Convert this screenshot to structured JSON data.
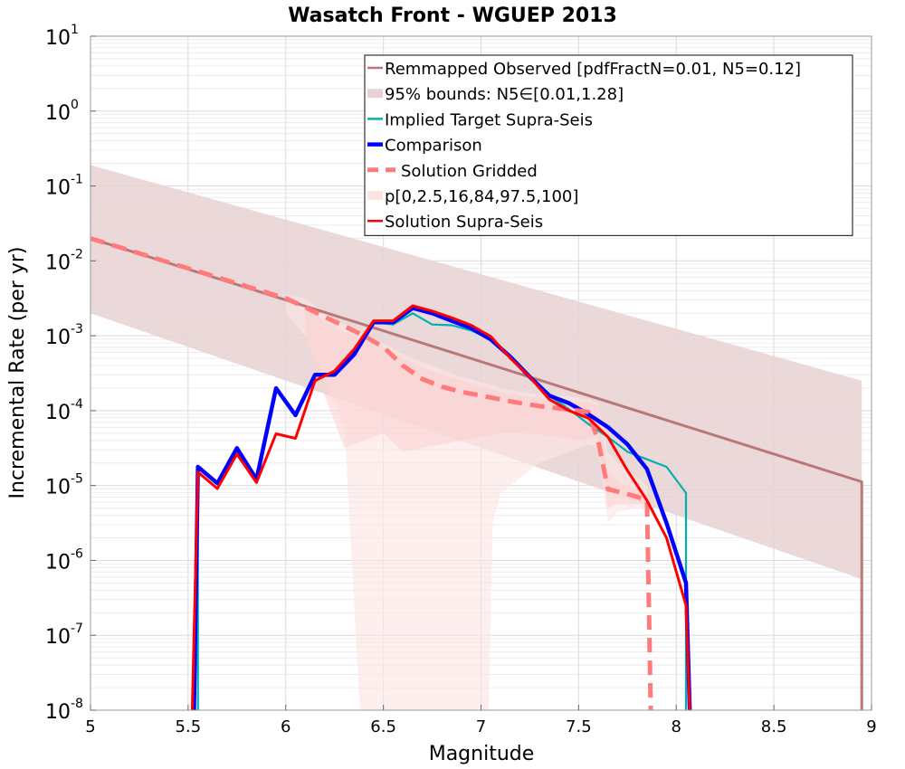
{
  "chart_data": {
    "type": "line",
    "title": "Wasatch Front - WGUEP 2013",
    "xlabel": "Magnitude",
    "ylabel": "Incremental Rate (per yr)",
    "xlim": [
      5,
      9
    ],
    "ylim_log10": [
      -8,
      1
    ],
    "x_ticks": [
      5,
      5.5,
      6,
      6.5,
      7,
      7.5,
      8,
      8.5,
      9
    ],
    "x_tick_labels": [
      "5",
      "5.5",
      "6",
      "6.5",
      "7",
      "7.5",
      "8",
      "8.5",
      "9"
    ],
    "y_ticks": [
      {
        "base": "10",
        "exp": "-8",
        "value": -8
      },
      {
        "base": "10",
        "exp": "-7",
        "value": -7
      },
      {
        "base": "10",
        "exp": "-6",
        "value": -6
      },
      {
        "base": "10",
        "exp": "-5",
        "value": -5
      },
      {
        "base": "10",
        "exp": "-4",
        "value": -4
      },
      {
        "base": "10",
        "exp": "-3",
        "value": -3
      },
      {
        "base": "10",
        "exp": "-2",
        "value": -2
      },
      {
        "base": "10",
        "exp": "-1",
        "value": -1
      },
      {
        "base": "10",
        "exp": "0",
        "value": 0
      },
      {
        "base": "10",
        "exp": "1",
        "value": 1
      }
    ],
    "grid": true,
    "legend_position": "top-right",
    "legend": [
      {
        "label": "Remmapped Observed [pdfFractN=0.01, N5=0.12]",
        "color": "#b87878",
        "style": "line"
      },
      {
        "label": "95% bounds: N5∈[0.01,1.28]",
        "color": "#e8d2d4",
        "style": "patch"
      },
      {
        "label": "Implied Target Supra-Seis",
        "color": "#00b0b0",
        "style": "line"
      },
      {
        "label": "Comparison",
        "color": "#0000ff",
        "style": "thick"
      },
      {
        "label": "Solution Gridded",
        "color": "#ff7a7a",
        "style": "dash"
      },
      {
        "label": "p[0,2.5,16,84,97.5,100]",
        "color": "#fde4e4",
        "style": "patch"
      },
      {
        "label": "Solution Supra-Seis",
        "color": "#ff0000",
        "style": "line"
      }
    ],
    "bands": [
      {
        "name": "95% bounds",
        "color": "#e8d2d4",
        "opacity": 0.85,
        "x": [
          5,
          8.95
        ],
        "upper_log10": [
          -0.72,
          -3.6
        ],
        "lower_log10": [
          -2.7,
          -6.25
        ]
      },
      {
        "name": "p 0-100",
        "color": "#fde4e4",
        "opacity": 0.6,
        "x": [
          6.0,
          6.1,
          6.2,
          6.3,
          6.38,
          6.4,
          6.5,
          6.6,
          6.7,
          6.8,
          6.9,
          7.0,
          7.04,
          7.06,
          7.1,
          7.2,
          7.3,
          7.4,
          7.5,
          7.55,
          7.6,
          7.65,
          7.7,
          7.8,
          7.85
        ],
        "upper_log10": [
          -2.45,
          -2.5,
          -2.7,
          -2.85,
          -2.95,
          -3.0,
          -3.1,
          -3.25,
          -3.35,
          -3.45,
          -3.55,
          -3.62,
          -3.65,
          -3.66,
          -3.7,
          -3.75,
          -3.78,
          -3.8,
          -3.82,
          -3.85,
          -3.9,
          -4.55,
          -4.7,
          -4.9,
          -5.0
        ],
        "lower_log10": [
          -2.7,
          -3.0,
          -3.6,
          -4.2,
          -8.0,
          -8.0,
          -8.0,
          -8.0,
          -8.0,
          -8.0,
          -8.0,
          -8.0,
          -8.0,
          -5.5,
          -5.1,
          -4.9,
          -4.7,
          -4.6,
          -4.5,
          -4.45,
          -4.5,
          -5.5,
          -5.35,
          -5.3,
          -5.3
        ]
      },
      {
        "name": "p 2.5-97.5",
        "color": "#fbd0d0",
        "opacity": 0.55,
        "x": [
          6.1,
          6.2,
          6.3,
          6.4,
          6.5,
          6.6,
          6.7,
          6.8,
          6.9,
          7.0,
          7.1,
          7.2,
          7.3,
          7.4,
          7.5,
          7.6,
          7.65,
          7.7,
          7.8,
          7.85
        ],
        "upper_log10": [
          -2.6,
          -2.8,
          -2.95,
          -3.05,
          -3.15,
          -3.3,
          -3.42,
          -3.52,
          -3.6,
          -3.68,
          -3.75,
          -3.8,
          -3.83,
          -3.86,
          -3.88,
          -3.92,
          -4.8,
          -4.95,
          -5.05,
          -5.1
        ],
        "lower_log10": [
          -3.0,
          -3.8,
          -4.5,
          -4.4,
          -4.3,
          -4.55,
          -4.5,
          -4.45,
          -4.4,
          -4.35,
          -4.3,
          -4.3,
          -4.32,
          -4.35,
          -4.4,
          -4.35,
          -5.3,
          -5.25,
          -5.25,
          -5.25
        ]
      }
    ],
    "series": [
      {
        "name": "Remmapped Observed [pdfFractN=0.01, N5=0.12]",
        "color": "#b87878",
        "width": 3,
        "x": [
          5.0,
          8.95,
          8.95
        ],
        "log10": [
          -1.7,
          -4.95,
          -8.1
        ]
      },
      {
        "name": "Implied Target Supra-Seis",
        "color": "#00b0b0",
        "width": 2.2,
        "x": [
          5.55,
          5.55,
          5.65,
          5.75,
          5.85,
          5.95,
          6.05,
          6.15,
          6.25,
          6.35,
          6.45,
          6.55,
          6.65,
          6.75,
          6.85,
          6.95,
          7.05,
          7.15,
          7.25,
          7.35,
          7.45,
          7.55,
          7.65,
          7.75,
          7.85,
          7.95,
          8.05,
          8.05
        ],
        "log10": [
          -8.1,
          -4.75,
          -4.97,
          -4.5,
          -4.92,
          -3.7,
          -4.06,
          -3.52,
          -3.52,
          -3.25,
          -2.82,
          -2.85,
          -2.7,
          -2.85,
          -2.86,
          -2.93,
          -3.05,
          -3.28,
          -3.55,
          -3.8,
          -3.98,
          -4.18,
          -4.35,
          -4.55,
          -4.65,
          -4.75,
          -5.1,
          -8.1
        ]
      },
      {
        "name": "Comparison",
        "color": "#0000ff",
        "width": 4.5,
        "x": [
          5.53,
          5.55,
          5.65,
          5.75,
          5.85,
          5.95,
          6.05,
          6.15,
          6.25,
          6.35,
          6.45,
          6.55,
          6.65,
          6.75,
          6.85,
          6.95,
          7.05,
          7.15,
          7.25,
          7.35,
          7.45,
          7.55,
          7.65,
          7.75,
          7.85,
          7.95,
          8.05,
          8.07
        ],
        "log10": [
          -8.1,
          -4.75,
          -4.97,
          -4.5,
          -4.92,
          -3.7,
          -4.06,
          -3.52,
          -3.52,
          -3.25,
          -2.82,
          -2.82,
          -2.63,
          -2.7,
          -2.8,
          -2.9,
          -3.05,
          -3.28,
          -3.55,
          -3.8,
          -3.9,
          -4.05,
          -4.22,
          -4.45,
          -4.78,
          -5.5,
          -6.3,
          -8.1
        ]
      },
      {
        "name": "Solution Gridded",
        "color": "#ff7a7a",
        "width": 5,
        "dash": "16,9",
        "x": [
          5.0,
          5.1,
          5.2,
          5.3,
          5.4,
          5.5,
          5.6,
          5.7,
          5.8,
          5.9,
          6.0,
          6.1,
          6.2,
          6.3,
          6.4,
          6.5,
          6.6,
          6.7,
          6.8,
          6.9,
          7.0,
          7.1,
          7.2,
          7.3,
          7.4,
          7.5,
          7.55,
          7.6,
          7.65,
          7.7,
          7.8,
          7.85,
          7.87
        ],
        "log10": [
          -1.7,
          -1.78,
          -1.86,
          -1.94,
          -2.02,
          -2.1,
          -2.18,
          -2.26,
          -2.34,
          -2.42,
          -2.5,
          -2.62,
          -2.75,
          -2.87,
          -3.0,
          -3.15,
          -3.4,
          -3.58,
          -3.68,
          -3.75,
          -3.8,
          -3.85,
          -3.9,
          -3.94,
          -3.97,
          -4.0,
          -4.02,
          -4.4,
          -5.05,
          -5.08,
          -5.15,
          -5.2,
          -8.1
        ]
      },
      {
        "name": "Solution Supra-Seis",
        "color": "#ff0000",
        "width": 3,
        "x": [
          5.52,
          5.55,
          5.65,
          5.75,
          5.85,
          5.95,
          6.05,
          6.15,
          6.25,
          6.35,
          6.45,
          6.55,
          6.65,
          6.75,
          6.85,
          6.95,
          7.05,
          7.15,
          7.25,
          7.35,
          7.45,
          7.55,
          7.65,
          7.75,
          7.85,
          7.95,
          8.05,
          8.07
        ],
        "log10": [
          -8.1,
          -4.82,
          -5.04,
          -4.58,
          -4.96,
          -4.31,
          -4.37,
          -3.6,
          -3.47,
          -3.18,
          -2.8,
          -2.8,
          -2.6,
          -2.67,
          -2.76,
          -2.86,
          -3.01,
          -3.3,
          -3.55,
          -3.85,
          -4.0,
          -4.1,
          -4.35,
          -4.8,
          -5.2,
          -5.7,
          -6.6,
          -8.1
        ]
      }
    ]
  }
}
